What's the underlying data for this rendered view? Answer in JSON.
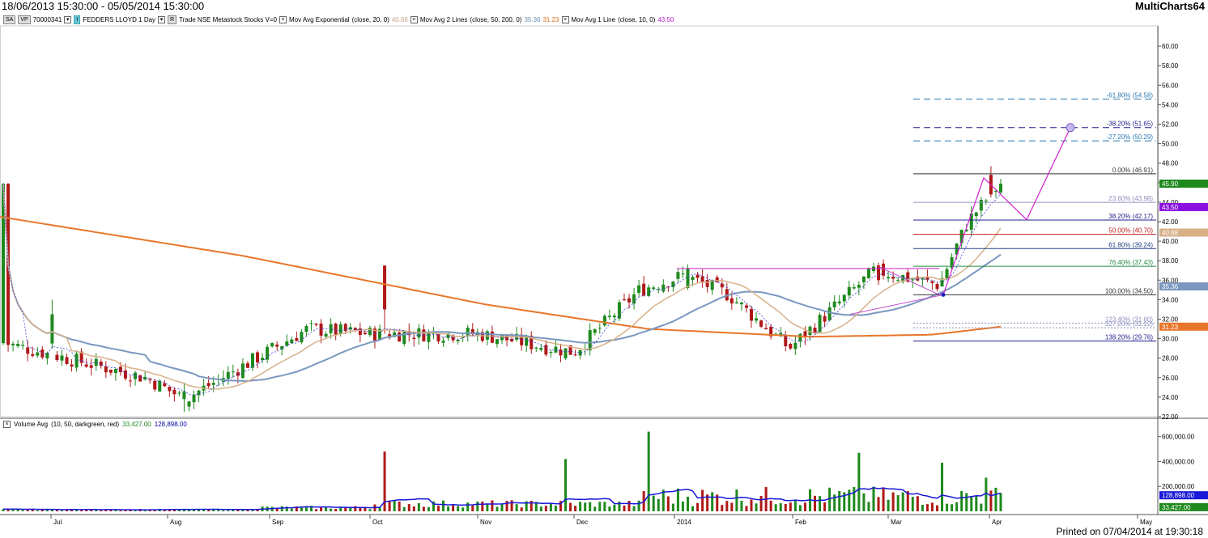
{
  "header": {
    "date_range": "18/06/2013 15:30:00 - 05/05/2014 15:30:00",
    "app_name": "MultiCharts64"
  },
  "toolbar": {
    "chip_sa": "SA",
    "chip_vp": "VP",
    "symbol_code": "70000341",
    "symbol_text": "FEDDERS LLOYD 1 Day",
    "chip_r": "R",
    "trade_text": "Trade NSE Metastock Stocks V=0",
    "ind1_name": "Mov Avg Exponential",
    "ind1_params": "(close, 20, 0)",
    "ind1_value": "40.88",
    "ind2_name": "Mov Avg 2 Lines",
    "ind2_params": "(close, 50, 200, 0)",
    "ind2_value_a": "35.36",
    "ind2_value_b": "31.23",
    "ind3_name": "Mov Avg 1 Line",
    "ind3_params": "(close, 10, 0)",
    "ind3_value": "43.50"
  },
  "volume_legend": {
    "name": "Volume Avg",
    "params": "(10, 50, darkgreen, red)",
    "value_a": "33,427.00",
    "value_b": "128,898.00"
  },
  "footer": {
    "printed": "Printed on 07/04/2014 at 19:30:18"
  },
  "colors": {
    "up": "#1e8a1e",
    "down": "#b01818",
    "ema20": "#d8b088",
    "ma50": "#7a98c0",
    "ma200": "#e8762a",
    "ma10": "#4040e0",
    "projection": "#d020d0",
    "volume_avg": "#1818d8"
  },
  "chart_data": [
    {
      "type": "candlestick",
      "title": "FEDDERS LLOYD 1 Day",
      "x_ticks": [
        "Jul",
        "Aug",
        "Sep",
        "Oct",
        "Nov",
        "Dec",
        "2014",
        "Feb",
        "Mar",
        "Apr",
        "May"
      ],
      "y_ticks": [
        "60.00",
        "58.00",
        "56.00",
        "54.00",
        "52.00",
        "50.00",
        "48.00",
        "46.00",
        "44.00",
        "42.00",
        "40.00",
        "38.00",
        "36.00",
        "34.00",
        "32.00",
        "30.00",
        "28.00",
        "26.00",
        "24.00",
        "22.00"
      ],
      "ylim": [
        22,
        62
      ],
      "price_close_samples": [
        {
          "date": "Jul",
          "close": 29.5
        },
        {
          "date": "Aug",
          "close": 26.0
        },
        {
          "date": "Aug-mid",
          "close": 23.8
        },
        {
          "date": "Sep",
          "close": 27.2
        },
        {
          "date": "Sep-mid",
          "close": 31.0
        },
        {
          "date": "Oct",
          "close": 30.5
        },
        {
          "date": "Nov",
          "close": 30.5
        },
        {
          "date": "Dec",
          "close": 28.6
        },
        {
          "date": "Dec-end",
          "close": 35.0
        },
        {
          "date": "2014",
          "close": 36.5
        },
        {
          "date": "Jan-mid",
          "close": 34.5
        },
        {
          "date": "Feb",
          "close": 29.0
        },
        {
          "date": "Feb-end",
          "close": 37.0
        },
        {
          "date": "Mar",
          "close": 35.5
        },
        {
          "date": "Mar-end",
          "close": 42.0
        },
        {
          "date": "Apr",
          "close": 45.9
        }
      ],
      "fibonacci_levels": [
        {
          "label": "-61.80% (54.58)",
          "value": 54.58
        },
        {
          "label": "-38.20% (51.65)",
          "value": 51.65
        },
        {
          "label": "-27.20% (50.29)",
          "value": 50.29
        },
        {
          "label": "0.00% (46.91)",
          "value": 46.91
        },
        {
          "label": "23.60% (43.98)",
          "value": 43.98
        },
        {
          "label": "38.20% (42.17)",
          "value": 42.17
        },
        {
          "label": "50.00% (40.70)",
          "value": 40.7
        },
        {
          "label": "61.80% (39.24)",
          "value": 39.24
        },
        {
          "label": "76.40% (37.43)",
          "value": 37.43
        },
        {
          "label": "100.00% (34.50)",
          "value": 34.5
        },
        {
          "label": "123.40% (31.60)",
          "value": 31.6
        },
        {
          "label": "127.20% (31.12)",
          "value": 31.12
        },
        {
          "label": "138.20% (29.76)",
          "value": 29.76
        }
      ],
      "price_tags": [
        {
          "label": "45.90",
          "value": 45.9,
          "color": "#1e8a1e"
        },
        {
          "label": "43.50",
          "value": 43.5,
          "color": "#8a10e0"
        },
        {
          "label": "40.88",
          "value": 40.88,
          "color": "#d8b088"
        },
        {
          "label": "35.36",
          "value": 35.36,
          "color": "#7a98c0"
        },
        {
          "label": "31.23",
          "value": 31.23,
          "color": "#e8762a"
        }
      ],
      "moving_averages": [
        {
          "name": "Mov Avg Exponential (close, 20, 0)",
          "last": 40.88
        },
        {
          "name": "Mov Avg 2 Lines 50",
          "last": 35.36
        },
        {
          "name": "Mov Avg 2 Lines 200",
          "last": 31.23
        },
        {
          "name": "Mov Avg 1 Line (close, 10, 0)",
          "last": 43.5
        }
      ]
    },
    {
      "type": "bar",
      "title": "Volume Avg",
      "y_ticks": [
        "600,000.00",
        "400,000.00",
        "200,000.00"
      ],
      "ylim": [
        0,
        650000
      ],
      "price_tags": [
        {
          "label": "128,898.00",
          "value": 128898,
          "color": "#1818d8"
        },
        {
          "label": "33,427.00",
          "value": 33427,
          "color": "#1e8a1e"
        }
      ],
      "notable_volumes": [
        {
          "date": "Oct",
          "value": 480000,
          "dir": "down"
        },
        {
          "date": "Dec",
          "value": 420000,
          "dir": "down"
        },
        {
          "date": "Dec-end",
          "value": 640000,
          "dir": "up"
        },
        {
          "date": "Feb-end",
          "value": 470000,
          "dir": "up"
        },
        {
          "date": "Mar-end",
          "value": 390000,
          "dir": "up"
        },
        {
          "date": "Apr",
          "value": 270000,
          "dir": "up"
        }
      ]
    }
  ]
}
